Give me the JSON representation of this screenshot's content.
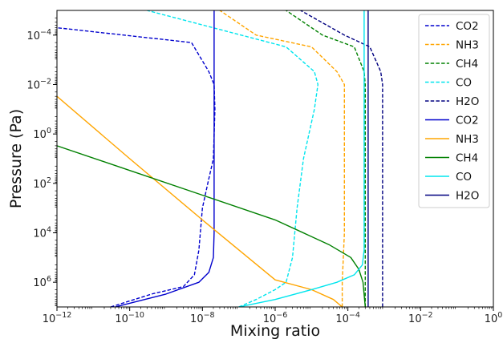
{
  "chart_data": {
    "type": "line",
    "title": "",
    "xlabel": "Mixing ratio",
    "ylabel": "Pressure (Pa)",
    "x_scale": "log",
    "y_scale": "log",
    "y_inverted": true,
    "xlim": [
      1e-12,
      1
    ],
    "ylim": [
      10000000.0,
      1e-05
    ],
    "x_ticks": [
      {
        "value": 1e-12,
        "base": "10",
        "exp": "−12"
      },
      {
        "value": 1e-10,
        "base": "10",
        "exp": "−10"
      },
      {
        "value": 1e-08,
        "base": "10",
        "exp": "−8"
      },
      {
        "value": 1e-06,
        "base": "10",
        "exp": "−6"
      },
      {
        "value": 0.0001,
        "base": "10",
        "exp": "−4"
      },
      {
        "value": 0.01,
        "base": "10",
        "exp": "−2"
      },
      {
        "value": 1,
        "base": "10",
        "exp": "0"
      }
    ],
    "y_ticks": [
      {
        "value": 0.0001,
        "base": "10",
        "exp": "−4"
      },
      {
        "value": 0.01,
        "base": "10",
        "exp": "−2"
      },
      {
        "value": 1,
        "base": "10",
        "exp": "0"
      },
      {
        "value": 100.0,
        "base": "10",
        "exp": "2"
      },
      {
        "value": 10000.0,
        "base": "10",
        "exp": "4"
      },
      {
        "value": 1000000.0,
        "base": "10",
        "exp": "6"
      }
    ],
    "grid": false,
    "legend_position": "top-right",
    "series": [
      {
        "name": "CO2",
        "style": "dashed",
        "color": "#0000cd",
        "points": [
          [
            3e-11,
            10000000.0
          ],
          [
            4e-10,
            3000000.0
          ],
          [
            3e-09,
            1500000.0
          ],
          [
            6e-09,
            500000.0
          ],
          [
            8e-09,
            50000.0
          ],
          [
            1e-08,
            1000.0
          ],
          [
            1.4e-08,
            100.0
          ],
          [
            2e-08,
            10.0
          ],
          [
            2.2e-08,
            0.1
          ],
          [
            2.1e-08,
            0.01
          ],
          [
            1.5e-08,
            0.003
          ],
          [
            5e-09,
            0.0002
          ],
          [
            1e-12,
            5e-05
          ]
        ]
      },
      {
        "name": "NH3",
        "style": "dashed",
        "color": "#ffa500",
        "points": [
          [
            7e-05,
            10000000.0
          ],
          [
            7e-05,
            1000000.0
          ],
          [
            8e-05,
            10000.0
          ],
          [
            8e-05,
            100.0
          ],
          [
            8e-05,
            1.0
          ],
          [
            8e-05,
            0.01
          ],
          [
            5e-05,
            0.003
          ],
          [
            1e-05,
            0.0003
          ],
          [
            3e-07,
            0.0001
          ],
          [
            3e-08,
            1e-05
          ]
        ]
      },
      {
        "name": "CH4",
        "style": "dashed",
        "color": "#008000",
        "points": [
          [
            0.0003,
            10000000.0
          ],
          [
            0.0003,
            1000000.0
          ],
          [
            0.0003,
            10000.0
          ],
          [
            0.0003,
            100.0
          ],
          [
            0.0003,
            1.0
          ],
          [
            0.0003,
            0.01
          ],
          [
            0.00028,
            0.003
          ],
          [
            0.00015,
            0.0003
          ],
          [
            2e-05,
            0.0001
          ],
          [
            2e-06,
            1e-05
          ]
        ]
      },
      {
        "name": "CO",
        "style": "dashed",
        "color": "#00e5ee",
        "points": [
          [
            1e-07,
            10000000.0
          ],
          [
            3e-07,
            5000000.0
          ],
          [
            1e-06,
            2000000.0
          ],
          [
            2e-06,
            1000000.0
          ],
          [
            3e-06,
            100000.0
          ],
          [
            4e-06,
            1000.0
          ],
          [
            6e-06,
            10.0
          ],
          [
            1.2e-05,
            0.1
          ],
          [
            1.5e-05,
            0.01
          ],
          [
            1.2e-05,
            0.003
          ],
          [
            2e-06,
            0.0003
          ],
          [
            3e-10,
            1e-05
          ]
        ]
      },
      {
        "name": "H2O",
        "style": "dashed",
        "color": "#000080",
        "points": [
          [
            0.0009,
            10000000.0
          ],
          [
            0.0009,
            1000000.0
          ],
          [
            0.0009,
            10000.0
          ],
          [
            0.0009,
            100.0
          ],
          [
            0.0009,
            1.0
          ],
          [
            0.0009,
            0.01
          ],
          [
            0.0008,
            0.003
          ],
          [
            0.0004,
            0.0003
          ],
          [
            8e-05,
            0.0001
          ],
          [
            5e-06,
            1e-05
          ]
        ]
      },
      {
        "name": "CO2",
        "style": "solid",
        "color": "#0000cd",
        "points": [
          [
            4e-11,
            10000000.0
          ],
          [
            1e-09,
            3000000.0
          ],
          [
            8e-09,
            1000000.0
          ],
          [
            1.5e-08,
            400000.0
          ],
          [
            2e-08,
            100000.0
          ],
          [
            2.1e-08,
            10000.0
          ],
          [
            2.1e-08,
            100.0
          ],
          [
            2.1e-08,
            1.0
          ],
          [
            2.1e-08,
            0.01
          ],
          [
            2.1e-08,
            0.0001
          ],
          [
            2.1e-08,
            1e-05
          ]
        ]
      },
      {
        "name": "NH3",
        "style": "solid",
        "color": "#ffa500",
        "points": [
          [
            1e-12,
            0.03
          ],
          [
            1e-10,
            10.0
          ],
          [
            1e-08,
            3000.0
          ],
          [
            1e-06,
            800000.0
          ],
          [
            1e-05,
            2000000.0
          ],
          [
            4e-05,
            5000000.0
          ],
          [
            7e-05,
            10000000.0
          ]
        ]
      },
      {
        "name": "CH4",
        "style": "solid",
        "color": "#008000",
        "points": [
          [
            1e-12,
            3.0
          ],
          [
            1e-10,
            30.0
          ],
          [
            1e-08,
            300.0
          ],
          [
            1e-06,
            3000.0
          ],
          [
            3e-05,
            30000.0
          ],
          [
            0.00012,
            100000.0
          ],
          [
            0.0002,
            300000.0
          ],
          [
            0.00026,
            1000000.0
          ],
          [
            0.0003,
            10000000.0
          ]
        ]
      },
      {
        "name": "CO",
        "style": "solid",
        "color": "#00e5ee",
        "points": [
          [
            1e-07,
            10000000.0
          ],
          [
            1e-06,
            5000000.0
          ],
          [
            1e-05,
            2000000.0
          ],
          [
            5e-05,
            1000000.0
          ],
          [
            0.00015,
            500000.0
          ],
          [
            0.00025,
            200000.0
          ],
          [
            0.00028,
            50000.0
          ],
          [
            0.00028,
            1000.0
          ],
          [
            0.00028,
            10.0
          ],
          [
            0.00028,
            0.1
          ],
          [
            0.00028,
            0.001
          ],
          [
            0.00028,
            1e-05
          ]
        ]
      },
      {
        "name": "H2O",
        "style": "solid",
        "color": "#000080",
        "points": [
          [
            0.00036,
            10000000.0
          ],
          [
            0.00036,
            100000.0
          ],
          [
            0.00036,
            1000.0
          ],
          [
            0.00036,
            10.0
          ],
          [
            0.00036,
            0.1
          ],
          [
            0.00036,
            0.001
          ],
          [
            0.00036,
            1e-05
          ]
        ]
      }
    ]
  }
}
